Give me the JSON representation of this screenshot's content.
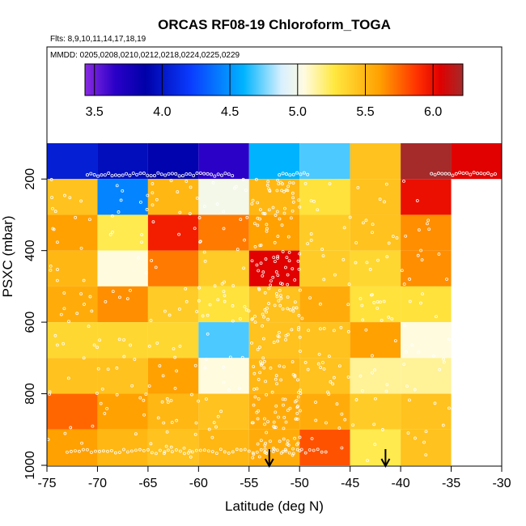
{
  "chart_data": {
    "type": "heatmap",
    "title": "ORCAS RF08-19 Chloroform_TOGA",
    "flights_note": "Flts: 8,9,10,11,14,17,18,19",
    "dates_note": "MMDD: 0205,0208,0210,0212,0218,0224,0225,0229",
    "xlabel": "Latitude (deg N)",
    "ylabel": "PSXC (mbar)",
    "xlim": [
      -75,
      -30
    ],
    "ylim": [
      1000,
      100
    ],
    "x_ticks": [
      -75,
      -70,
      -65,
      -60,
      -55,
      -50,
      -45,
      -40,
      -35,
      -30
    ],
    "x_tick_labels": [
      "-75",
      "-70",
      "-65",
      "-60",
      "-55",
      "-50",
      "-45",
      "-40",
      "-35",
      "-30"
    ],
    "y_ticks": [
      200,
      400,
      600,
      800,
      1000
    ],
    "y_tick_labels": [
      "200",
      "400",
      "600",
      "800",
      "1000"
    ],
    "colorbar": {
      "range": [
        3.43,
        6.22
      ],
      "ticks": [
        3.5,
        4.0,
        4.5,
        5.0,
        5.5,
        6.0
      ],
      "tick_labels": [
        "3.5",
        "4.0",
        "4.5",
        "5.0",
        "5.5",
        "6.0"
      ]
    },
    "lat_bins": [
      -75,
      -70,
      -65,
      -60,
      -55,
      -50,
      -45,
      -40,
      -35
    ],
    "pressure_bins": [
      100,
      200,
      300,
      400,
      500,
      600,
      700,
      800,
      900,
      1000
    ],
    "grid_values": [
      [
        4.05,
        3.95,
        3.9,
        3.65,
        4.6,
        4.7,
        5.45,
        6.25,
        6.05
      ],
      [
        5.45,
        4.45,
        5.5,
        5.0,
        5.5,
        5.3,
        5.45,
        6.0,
        null
      ],
      [
        5.6,
        5.25,
        5.95,
        5.7,
        5.6,
        5.4,
        5.45,
        5.65,
        null
      ],
      [
        5.5,
        5.05,
        5.7,
        5.4,
        6.05,
        5.4,
        5.35,
        5.65,
        null
      ],
      [
        5.55,
        5.65,
        5.4,
        5.3,
        5.45,
        5.55,
        5.3,
        5.3,
        null
      ],
      [
        5.35,
        5.35,
        5.35,
        4.7,
        5.45,
        5.45,
        5.6,
        5.05,
        null
      ],
      [
        5.45,
        5.45,
        5.6,
        5.05,
        5.5,
        5.45,
        5.15,
        5.15,
        null
      ],
      [
        5.75,
        5.6,
        5.5,
        5.45,
        5.55,
        5.55,
        5.4,
        5.45,
        null
      ],
      [
        5.6,
        5.5,
        5.45,
        5.5,
        5.55,
        5.8,
        5.25,
        5.45,
        null
      ]
    ],
    "arrows_lat": [
      -53,
      -41.5
    ]
  }
}
